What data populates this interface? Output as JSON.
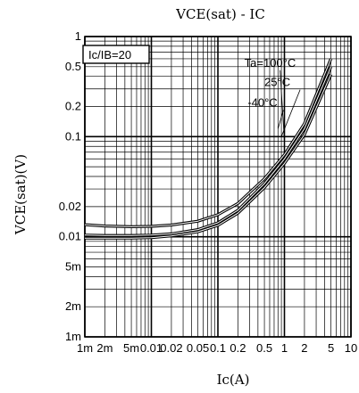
{
  "chart_data": {
    "type": "line",
    "title": "VCE(sat) - IC",
    "xlabel": "Ic(A)",
    "ylabel": "VCE(sat)(V)",
    "xscale": "log",
    "yscale": "log",
    "xlim": [
      0.001,
      10
    ],
    "ylim": [
      0.001,
      1
    ],
    "grid": true,
    "legend": {
      "text": "Ic/IB=20",
      "placement": "top-left"
    },
    "x_ticks": [
      {
        "v": 0.001,
        "label": "1m"
      },
      {
        "v": 0.002,
        "label": "2m"
      },
      {
        "v": 0.005,
        "label": "5m"
      },
      {
        "v": 0.01,
        "label": "0.01"
      },
      {
        "v": 0.02,
        "label": "0.02"
      },
      {
        "v": 0.05,
        "label": "0.05"
      },
      {
        "v": 0.1,
        "label": "0.1"
      },
      {
        "v": 0.2,
        "label": "0.2"
      },
      {
        "v": 0.5,
        "label": "0.5"
      },
      {
        "v": 1,
        "label": "1"
      },
      {
        "v": 2,
        "label": "2"
      },
      {
        "v": 5,
        "label": "5"
      },
      {
        "v": 10,
        "label": "10"
      }
    ],
    "y_ticks": [
      {
        "v": 1,
        "label": "1"
      },
      {
        "v": 0.5,
        "label": "0.5"
      },
      {
        "v": 0.2,
        "label": "0.2"
      },
      {
        "v": 0.1,
        "label": "0.1"
      },
      {
        "v": 0.02,
        "label": "0.02"
      },
      {
        "v": 0.01,
        "label": "0.01"
      },
      {
        "v": 0.005,
        "label": "5m"
      },
      {
        "v": 0.002,
        "label": "2m"
      },
      {
        "v": 0.001,
        "label": "1m"
      }
    ],
    "annotations": [
      {
        "text": "Ta=100°C",
        "x": 0.25,
        "y": 0.5
      },
      {
        "text": "25°C",
        "x": 0.5,
        "y": 0.32
      },
      {
        "text": "-40°C",
        "x": 0.28,
        "y": 0.2
      }
    ],
    "series": [
      {
        "name": "Ta=100°C",
        "x": [
          0.001,
          0.002,
          0.005,
          0.01,
          0.02,
          0.05,
          0.1,
          0.2,
          0.5,
          1,
          2,
          5
        ],
        "y": [
          0.0104,
          0.0103,
          0.0103,
          0.0104,
          0.0107,
          0.0118,
          0.0138,
          0.0184,
          0.034,
          0.06,
          0.12,
          0.5
        ]
      },
      {
        "name": "25°C",
        "x": [
          0.001,
          0.002,
          0.005,
          0.01,
          0.02,
          0.05,
          0.1,
          0.2,
          0.5,
          1,
          2,
          5
        ],
        "y": [
          0.0097,
          0.0097,
          0.0097,
          0.0098,
          0.0102,
          0.0112,
          0.013,
          0.0172,
          0.031,
          0.054,
          0.105,
          0.42
        ]
      },
      {
        "name": "-40°C",
        "x": [
          0.001,
          0.002,
          0.005,
          0.01,
          0.02,
          0.05,
          0.1,
          0.2,
          0.5,
          1,
          2,
          5
        ],
        "y": [
          0.0132,
          0.0128,
          0.0126,
          0.0127,
          0.0131,
          0.0143,
          0.0166,
          0.0215,
          0.038,
          0.066,
          0.135,
          0.6
        ]
      }
    ],
    "highlight_colors": [
      "#ff99cc",
      "#33cc99",
      "#cc9933"
    ]
  }
}
